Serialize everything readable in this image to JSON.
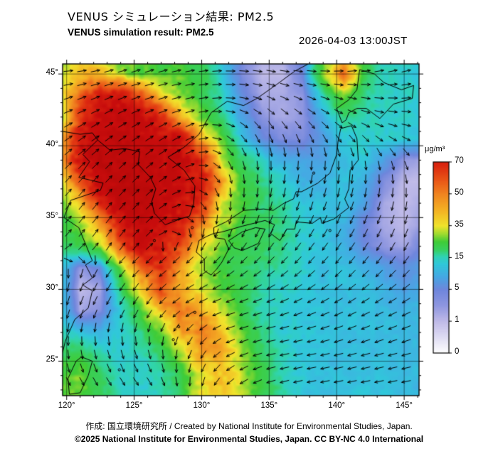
{
  "header": {
    "title_ja": "VENUS シミュレーション結果: PM2.5",
    "title_en": "VENUS simulation result: PM2.5",
    "timestamp": "2026-04-03 13:00JST"
  },
  "footer": {
    "credit": "作成: 国立環境研究所 / Created by National Institute for Environmental Studies, Japan.",
    "copyright": "©2025 National Institute for Environmental Studies, Japan. CC BY-NC 4.0 International"
  },
  "colorbar": {
    "unit": "μg/m³",
    "ticks": [
      70,
      50,
      35,
      15,
      5,
      1,
      0
    ]
  },
  "axes": {
    "lat_ticks": [
      45,
      40,
      35,
      30,
      25
    ],
    "lon_ticks": [
      120,
      125,
      130,
      135,
      140,
      145
    ],
    "lat_range": [
      22.6,
      45.7
    ],
    "lon_range": [
      119.7,
      146.1
    ],
    "tick_suffix": "°"
  },
  "chart_data": {
    "type": "heatmap",
    "title": "VENUS simulation result: PM2.5",
    "unit": "μg/m³",
    "grid": {
      "lon_start": 119.5,
      "lon_step": 1.5,
      "lat_start": 46.5,
      "lat_step": -1.5,
      "values": [
        [
          28,
          33,
          30,
          26,
          24,
          22,
          24,
          22,
          14,
          5,
          2,
          2,
          6,
          25,
          30,
          22,
          16,
          14,
          13
        ],
        [
          30,
          42,
          40,
          30,
          26,
          24,
          26,
          22,
          13,
          4,
          1,
          1,
          5,
          28,
          55,
          22,
          15,
          14,
          13
        ],
        [
          30,
          55,
          72,
          75,
          60,
          38,
          28,
          22,
          15,
          6,
          2,
          2,
          3,
          16,
          28,
          18,
          15,
          14,
          13
        ],
        [
          28,
          65,
          82,
          85,
          80,
          70,
          40,
          26,
          18,
          8,
          3,
          2,
          3,
          10,
          18,
          16,
          14,
          14,
          13
        ],
        [
          40,
          75,
          85,
          90,
          85,
          82,
          75,
          45,
          26,
          12,
          6,
          4,
          4,
          8,
          13,
          14,
          14,
          13,
          12
        ],
        [
          40,
          80,
          90,
          90,
          86,
          85,
          80,
          70,
          30,
          20,
          14,
          10,
          8,
          8,
          12,
          13,
          8,
          3,
          2
        ],
        [
          30,
          60,
          85,
          90,
          90,
          86,
          82,
          75,
          45,
          25,
          18,
          14,
          10,
          10,
          12,
          10,
          4,
          1,
          1
        ],
        [
          25,
          40,
          70,
          85,
          90,
          85,
          80,
          70,
          35,
          25,
          20,
          16,
          12,
          12,
          12,
          8,
          2,
          1,
          2
        ],
        [
          22,
          30,
          45,
          75,
          85,
          80,
          75,
          50,
          30,
          24,
          20,
          18,
          14,
          12,
          10,
          5,
          2,
          1,
          3
        ],
        [
          18,
          22,
          30,
          55,
          80,
          75,
          60,
          35,
          26,
          22,
          20,
          18,
          14,
          12,
          10,
          6,
          3,
          2,
          5
        ],
        [
          14,
          3,
          6,
          28,
          55,
          68,
          45,
          30,
          24,
          20,
          18,
          16,
          14,
          12,
          12,
          10,
          8,
          6,
          8
        ],
        [
          12,
          1,
          2,
          18,
          38,
          60,
          42,
          34,
          26,
          20,
          16,
          14,
          13,
          12,
          12,
          12,
          10,
          8,
          10
        ],
        [
          14,
          2,
          4,
          14,
          25,
          40,
          52,
          45,
          32,
          22,
          16,
          14,
          13,
          12,
          12,
          12,
          11,
          10,
          11
        ],
        [
          16,
          12,
          10,
          14,
          18,
          28,
          45,
          50,
          40,
          26,
          18,
          14,
          13,
          12,
          12,
          12,
          12,
          11,
          11
        ],
        [
          20,
          22,
          16,
          14,
          16,
          20,
          30,
          45,
          42,
          30,
          20,
          15,
          13,
          12,
          12,
          12,
          12,
          11,
          11
        ],
        [
          25,
          28,
          20,
          15,
          14,
          16,
          22,
          35,
          40,
          32,
          22,
          16,
          13,
          12,
          12,
          12,
          12,
          11,
          11
        ]
      ]
    },
    "colormap": [
      [
        0,
        "#ffffff"
      ],
      [
        1,
        "#c0bbe8"
      ],
      [
        3,
        "#8f97e0"
      ],
      [
        5,
        "#6f86dc"
      ],
      [
        9,
        "#46a8e4"
      ],
      [
        13,
        "#30c8da"
      ],
      [
        16,
        "#30d4ae"
      ],
      [
        20,
        "#38d060"
      ],
      [
        25,
        "#3fcc38"
      ],
      [
        30,
        "#a0dc30"
      ],
      [
        35,
        "#f0e42c"
      ],
      [
        42,
        "#f4b424"
      ],
      [
        50,
        "#f08420"
      ],
      [
        58,
        "#ea5a18"
      ],
      [
        68,
        "#dc2810"
      ],
      [
        80,
        "#c80c0c"
      ],
      [
        100,
        "#b40808"
      ]
    ],
    "wind": {
      "lon_start": 120,
      "lon_step": 3,
      "lat_start": 46,
      "lat_step": -2.5,
      "uv": [
        [
          [
            1,
            0
          ],
          [
            1,
            0.2
          ],
          [
            1,
            0.3
          ],
          [
            1,
            0.2
          ],
          [
            1,
            0
          ],
          [
            1,
            -0.1
          ],
          [
            1,
            0
          ],
          [
            1,
            0.2
          ],
          [
            1,
            0.3
          ],
          [
            1,
            0.3
          ]
        ],
        [
          [
            1,
            0.3
          ],
          [
            1,
            0.4
          ],
          [
            1,
            0.3
          ],
          [
            0.9,
            0.2
          ],
          [
            0.7,
            0
          ],
          [
            0.7,
            -0.3
          ],
          [
            0.8,
            -0.3
          ],
          [
            1,
            -0.2
          ],
          [
            1,
            0
          ],
          [
            1,
            0.2
          ]
        ],
        [
          [
            0.8,
            0.5
          ],
          [
            0.9,
            0.6
          ],
          [
            0.8,
            0.5
          ],
          [
            0.6,
            0.3
          ],
          [
            0.4,
            -0.2
          ],
          [
            0.3,
            -0.6
          ],
          [
            0.4,
            -0.6
          ],
          [
            0.6,
            -0.5
          ],
          [
            0.8,
            -0.3
          ],
          [
            1,
            -0.2
          ]
        ],
        [
          [
            0.6,
            0.6
          ],
          [
            0.7,
            0.7
          ],
          [
            0.7,
            0.6
          ],
          [
            0.5,
            0.2
          ],
          [
            0.2,
            -0.4
          ],
          [
            0,
            -0.8
          ],
          [
            -0.1,
            -0.9
          ],
          [
            0,
            -1
          ],
          [
            0.2,
            -0.9
          ],
          [
            0.4,
            -0.8
          ]
        ],
        [
          [
            0.4,
            0.5
          ],
          [
            0.5,
            0.6
          ],
          [
            0.5,
            0.5
          ],
          [
            0.3,
            0
          ],
          [
            0,
            -0.5
          ],
          [
            -0.2,
            -0.9
          ],
          [
            -0.3,
            -1
          ],
          [
            -0.3,
            -1
          ],
          [
            -0.2,
            -1
          ],
          [
            0,
            -1
          ]
        ],
        [
          [
            0.2,
            0.2
          ],
          [
            0.2,
            0.3
          ],
          [
            0.2,
            0.2
          ],
          [
            0,
            -0.2
          ],
          [
            -0.3,
            -0.6
          ],
          [
            -0.5,
            -0.8
          ],
          [
            -0.6,
            -0.9
          ],
          [
            -0.6,
            -1
          ],
          [
            -0.5,
            -1
          ],
          [
            -0.4,
            -1
          ]
        ],
        [
          [
            0,
            -0.2
          ],
          [
            -0.2,
            -0.3
          ],
          [
            -0.4,
            -0.4
          ],
          [
            -0.6,
            -0.4
          ],
          [
            -0.7,
            -0.5
          ],
          [
            -0.8,
            -0.6
          ],
          [
            -0.8,
            -0.7
          ],
          [
            -0.8,
            -0.8
          ],
          [
            -0.8,
            -0.8
          ],
          [
            -0.8,
            -0.8
          ]
        ],
        [
          [
            -0.2,
            -0.6
          ],
          [
            -0.4,
            -0.8
          ],
          [
            -0.6,
            -0.9
          ],
          [
            -0.9,
            -0.5
          ],
          [
            -1,
            -0.3
          ],
          [
            -1,
            -0.3
          ],
          [
            -1,
            -0.4
          ],
          [
            -1,
            -0.5
          ],
          [
            -1,
            -0.5
          ],
          [
            -1,
            -0.5
          ]
        ],
        [
          [
            0,
            -0.8
          ],
          [
            0.2,
            -1
          ],
          [
            0.2,
            -1
          ],
          [
            -0.4,
            -0.9
          ],
          [
            -0.9,
            -0.4
          ],
          [
            -1,
            -0.2
          ],
          [
            -1,
            -0.2
          ],
          [
            -1,
            -0.3
          ],
          [
            -1,
            -0.3
          ],
          [
            -1,
            -0.3
          ]
        ],
        [
          [
            0.3,
            -0.6
          ],
          [
            0.5,
            -0.8
          ],
          [
            0.6,
            -0.9
          ],
          [
            0,
            -1
          ],
          [
            -0.7,
            -0.6
          ],
          [
            -1,
            -0.3
          ],
          [
            -1,
            -0.2
          ],
          [
            -1,
            -0.2
          ],
          [
            -1,
            -0.2
          ],
          [
            -1,
            -0.2
          ]
        ]
      ]
    },
    "coastlines": [
      [
        [
          119.7,
          41.0
        ],
        [
          121.0,
          40.8
        ],
        [
          121.9,
          40.9
        ],
        [
          122.3,
          40.4
        ],
        [
          121.2,
          39.4
        ],
        [
          121.7,
          38.9
        ],
        [
          120.9,
          37.8
        ],
        [
          122.7,
          37.4
        ],
        [
          122.5,
          36.9
        ],
        [
          120.3,
          36.2
        ],
        [
          119.8,
          35.0
        ],
        [
          120.9,
          34.3
        ],
        [
          121.9,
          32.0
        ],
        [
          121.4,
          31.7
        ],
        [
          121.9,
          30.8
        ],
        [
          121.2,
          30.3
        ],
        [
          121.9,
          29.9
        ],
        [
          121.6,
          28.7
        ],
        [
          120.6,
          27.9
        ],
        [
          119.9,
          26.4
        ],
        [
          119.7,
          25.6
        ]
      ],
      [
        [
          122.3,
          40.4
        ],
        [
          123.2,
          39.7
        ],
        [
          124.3,
          39.8
        ],
        [
          125.4,
          39.6
        ],
        [
          125.3,
          38.7
        ],
        [
          126.2,
          37.8
        ],
        [
          126.6,
          37.0
        ],
        [
          126.3,
          36.1
        ],
        [
          126.5,
          35.3
        ],
        [
          127.3,
          34.5
        ],
        [
          128.4,
          34.9
        ],
        [
          129.1,
          35.1
        ],
        [
          129.4,
          35.9
        ],
        [
          129.5,
          37.2
        ],
        [
          128.7,
          38.3
        ],
        [
          127.5,
          39.2
        ],
        [
          128.7,
          39.9
        ],
        [
          129.8,
          40.8
        ],
        [
          130.7,
          42.3
        ]
      ],
      [
        [
          130.7,
          42.3
        ],
        [
          131.9,
          43.1
        ],
        [
          133.1,
          42.8
        ],
        [
          134.1,
          43.3
        ],
        [
          135.6,
          44.3
        ],
        [
          136.9,
          45.2
        ],
        [
          137.9,
          45.7
        ]
      ],
      [
        [
          140.3,
          41.2
        ],
        [
          141.1,
          41.4
        ],
        [
          141.5,
          40.5
        ],
        [
          141.6,
          39.0
        ],
        [
          141.0,
          38.3
        ],
        [
          140.9,
          37.0
        ],
        [
          140.6,
          36.3
        ],
        [
          140.9,
          35.7
        ],
        [
          139.8,
          34.9
        ],
        [
          138.9,
          34.6
        ],
        [
          138.8,
          35.0
        ],
        [
          138.2,
          34.6
        ],
        [
          137.0,
          34.7
        ],
        [
          136.9,
          34.2
        ],
        [
          136.3,
          34.2
        ],
        [
          135.8,
          33.4
        ],
        [
          135.1,
          33.9
        ],
        [
          135.4,
          34.5
        ],
        [
          134.7,
          34.8
        ],
        [
          133.0,
          34.4
        ],
        [
          131.5,
          34.0
        ],
        [
          130.9,
          33.9
        ],
        [
          130.9,
          34.3
        ],
        [
          131.8,
          34.7
        ],
        [
          133.1,
          35.5
        ],
        [
          134.6,
          35.6
        ],
        [
          135.3,
          35.5
        ],
        [
          136.1,
          36.0
        ],
        [
          136.8,
          36.3
        ],
        [
          137.0,
          36.8
        ],
        [
          137.4,
          36.8
        ],
        [
          138.6,
          37.4
        ],
        [
          139.5,
          38.1
        ],
        [
          140.0,
          39.4
        ],
        [
          140.1,
          40.3
        ],
        [
          140.3,
          41.2
        ]
      ],
      [
        [
          140.4,
          41.6
        ],
        [
          140.0,
          42.6
        ],
        [
          140.9,
          43.2
        ],
        [
          141.5,
          43.9
        ],
        [
          141.7,
          45.3
        ],
        [
          142.8,
          45.0
        ],
        [
          143.5,
          44.4
        ],
        [
          144.8,
          43.9
        ],
        [
          145.7,
          44.2
        ],
        [
          145.6,
          43.3
        ],
        [
          144.2,
          42.9
        ],
        [
          143.2,
          41.9
        ],
        [
          142.2,
          42.6
        ],
        [
          141.5,
          42.6
        ],
        [
          140.9,
          42.3
        ],
        [
          140.7,
          41.8
        ],
        [
          140.4,
          41.6
        ]
      ],
      [
        [
          130.9,
          33.9
        ],
        [
          130.4,
          33.7
        ],
        [
          129.8,
          33.4
        ],
        [
          129.6,
          32.6
        ],
        [
          130.2,
          32.1
        ],
        [
          130.2,
          31.3
        ],
        [
          130.7,
          31.0
        ],
        [
          131.1,
          31.4
        ],
        [
          131.5,
          31.9
        ],
        [
          132.0,
          32.8
        ],
        [
          131.7,
          33.5
        ],
        [
          131.0,
          33.6
        ],
        [
          130.9,
          33.9
        ]
      ],
      [
        [
          132.0,
          33.4
        ],
        [
          132.4,
          32.9
        ],
        [
          133.0,
          32.7
        ],
        [
          134.2,
          33.2
        ],
        [
          134.7,
          34.2
        ],
        [
          134.0,
          34.3
        ],
        [
          133.0,
          34.0
        ],
        [
          132.0,
          33.4
        ]
      ],
      [
        [
          121.1,
          25.3
        ],
        [
          121.9,
          25.0
        ],
        [
          121.6,
          24.0
        ],
        [
          121.0,
          22.8
        ],
        [
          120.2,
          22.7
        ],
        [
          120.1,
          23.8
        ],
        [
          120.7,
          25.0
        ],
        [
          121.1,
          25.3
        ]
      ]
    ],
    "islands": [
      [
        126.5,
        33.4
      ],
      [
        129.3,
        34.3
      ],
      [
        138.3,
        38.1
      ],
      [
        139.5,
        34.1
      ],
      [
        127.9,
        26.5
      ],
      [
        129.5,
        28.4
      ],
      [
        128.3,
        27.4
      ],
      [
        123.9,
        24.4
      ]
    ]
  }
}
